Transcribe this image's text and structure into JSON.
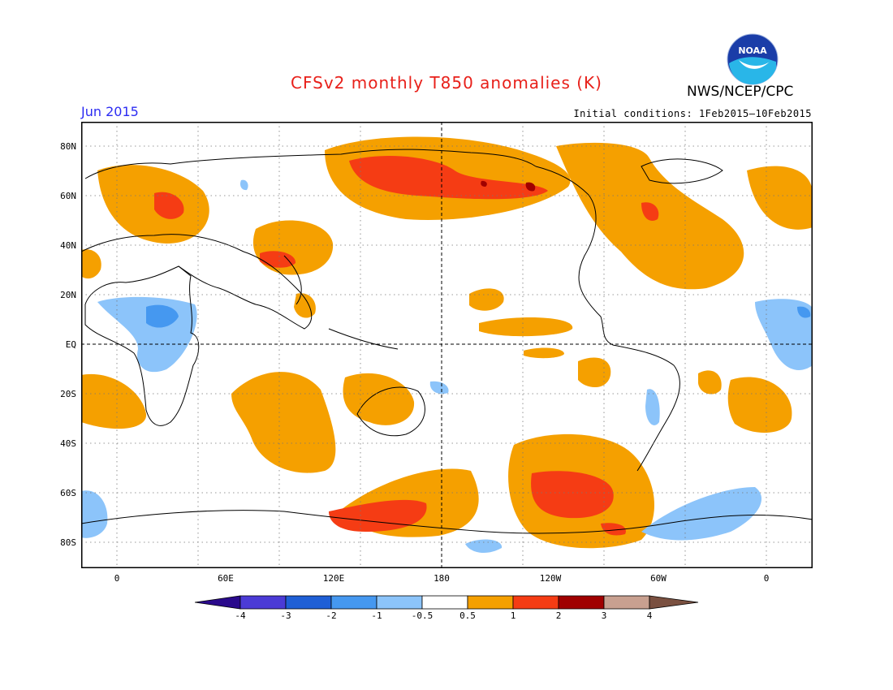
{
  "header": {
    "title": "CFSv2 monthly T850 anomalies (K)",
    "period": "Jun 2015",
    "agency": "NWS/NCEP/CPC",
    "initial_conditions": "Initial conditions: 1Feb2015–10Feb2015",
    "logo": {
      "icon": "noaa-logo",
      "text": "NOAA"
    }
  },
  "map": {
    "projection": "cylindrical equidistant, centered 180",
    "lat_labels": [
      "80N",
      "60N",
      "40N",
      "20N",
      "EQ",
      "20S",
      "40S",
      "60S",
      "80S"
    ],
    "lon_labels": [
      "0",
      "60E",
      "120E",
      "180",
      "120W",
      "60W",
      "0"
    ],
    "gridlines": "dotted",
    "reference_lines": [
      "EQ",
      "180"
    ]
  },
  "legend": {
    "labels": [
      "-4",
      "-3",
      "-2",
      "-1",
      "-0.5",
      "0.5",
      "1",
      "2",
      "3",
      "4"
    ],
    "colors": [
      "#2a0a8c",
      "#4b3bd6",
      "#1f5fd6",
      "#4598f0",
      "#8cc4fa",
      "#ffffff",
      "#f5a000",
      "#f53c14",
      "#a00000",
      "#c8a090",
      "#7a5040"
    ]
  }
}
